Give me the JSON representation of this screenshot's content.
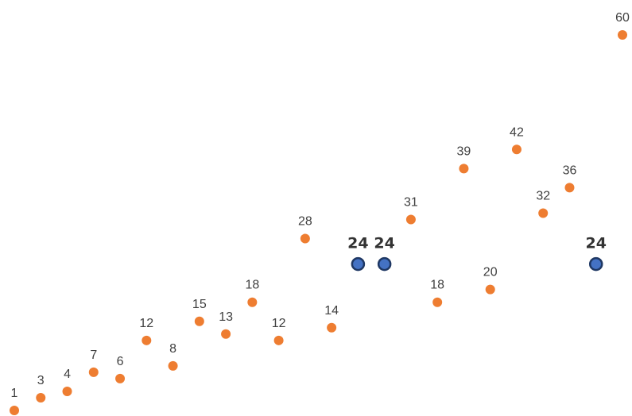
{
  "chart_data": {
    "type": "scatter",
    "title": "",
    "xlabel": "",
    "ylabel": "",
    "xlim": [
      0.5,
      24.2
    ],
    "ylim": [
      0,
      61.5
    ],
    "grid": false,
    "legend": "none",
    "colors": {
      "series": "#EE7D31",
      "highlight_fill": "#4472C4",
      "highlight_stroke": "#1F3864",
      "label": "#404040",
      "highlight_label": "#333333"
    },
    "series": [
      {
        "points": [
          {
            "x": 1,
            "y": 1
          },
          {
            "x": 2,
            "y": 3
          },
          {
            "x": 3,
            "y": 4
          },
          {
            "x": 4,
            "y": 7
          },
          {
            "x": 5,
            "y": 6
          },
          {
            "x": 6,
            "y": 12
          },
          {
            "x": 7,
            "y": 8
          },
          {
            "x": 8,
            "y": 15
          },
          {
            "x": 9,
            "y": 13
          },
          {
            "x": 10,
            "y": 18
          },
          {
            "x": 11,
            "y": 12
          },
          {
            "x": 12,
            "y": 28
          },
          {
            "x": 13,
            "y": 14
          },
          {
            "x": 16,
            "y": 31
          },
          {
            "x": 17,
            "y": 18
          },
          {
            "x": 18,
            "y": 39
          },
          {
            "x": 19,
            "y": 20
          },
          {
            "x": 20,
            "y": 42
          },
          {
            "x": 21,
            "y": 32
          },
          {
            "x": 22,
            "y": 36
          },
          {
            "x": 24,
            "y": 60
          }
        ]
      },
      {
        "highlight": true,
        "points": [
          {
            "x": 14,
            "y": 24
          },
          {
            "x": 15,
            "y": 24
          },
          {
            "x": 23,
            "y": 24
          }
        ]
      }
    ]
  }
}
